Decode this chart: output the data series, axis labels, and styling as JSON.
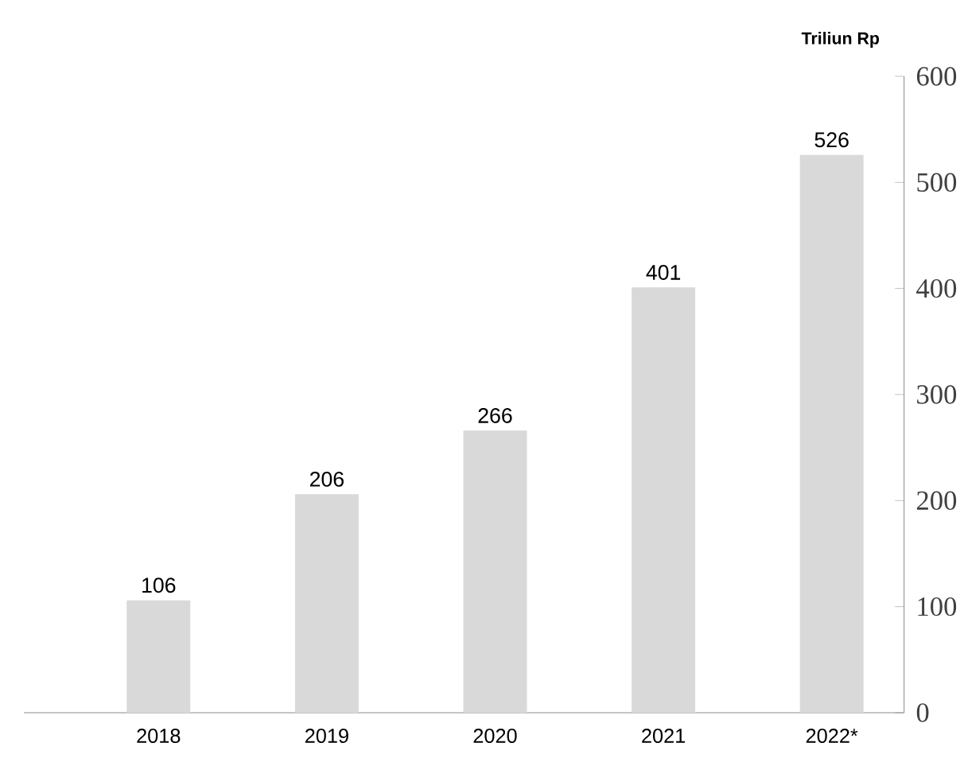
{
  "chart_data": {
    "type": "bar",
    "ylabel": "Triliun Rp",
    "categories": [
      "2018",
      "2019",
      "2020",
      "2021",
      "2022*"
    ],
    "values": [
      106,
      206,
      266,
      401,
      526
    ],
    "color": "#d9d9d9",
    "ylim": [
      0,
      600
    ],
    "yticks": [
      0,
      100,
      200,
      300,
      400,
      500,
      600
    ],
    "data_labels": true,
    "grid": false
  }
}
